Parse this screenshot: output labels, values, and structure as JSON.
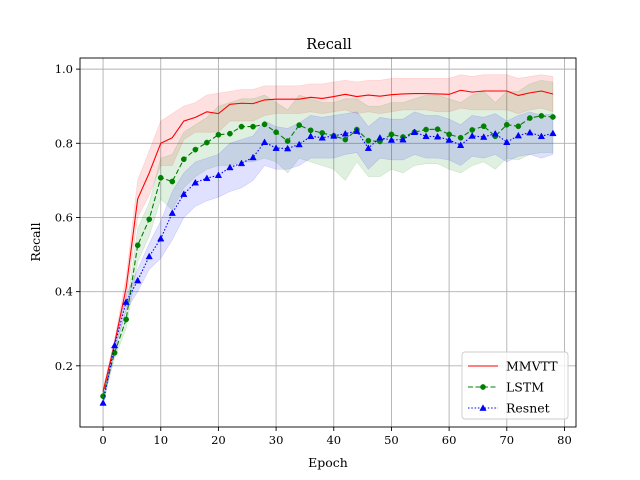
{
  "chart_data": {
    "type": "line",
    "title": "Recall",
    "xlabel": "Epoch",
    "ylabel": "Recall",
    "xlim": [
      -4,
      82
    ],
    "ylim": [
      0.035,
      1.03
    ],
    "xticks": [
      0,
      10,
      20,
      30,
      40,
      50,
      60,
      70,
      80
    ],
    "yticks": [
      0.2,
      0.4,
      0.6,
      0.8,
      1.0
    ],
    "xtick_labels": [
      "0",
      "10",
      "20",
      "30",
      "40",
      "50",
      "60",
      "70",
      "80"
    ],
    "ytick_labels": [
      "0.2",
      "0.4",
      "0.6",
      "0.8",
      "1.0"
    ],
    "grid": true,
    "legend_position": "lower-right",
    "x": [
      0,
      2,
      4,
      6,
      8,
      10,
      12,
      14,
      16,
      18,
      20,
      22,
      24,
      26,
      28,
      30,
      32,
      34,
      36,
      38,
      40,
      42,
      44,
      46,
      48,
      50,
      52,
      54,
      56,
      58,
      60,
      62,
      64,
      66,
      68,
      70,
      72,
      74,
      76,
      78
    ],
    "series": [
      {
        "name": "MMVTT",
        "color": "#ff0000",
        "line_style": "solid",
        "marker": "none",
        "values": [
          0.13,
          0.26,
          0.41,
          0.65,
          0.72,
          0.8,
          0.815,
          0.86,
          0.87,
          0.885,
          0.88,
          0.905,
          0.908,
          0.907,
          0.917,
          0.919,
          0.919,
          0.919,
          0.924,
          0.921,
          0.926,
          0.932,
          0.926,
          0.93,
          0.927,
          0.931,
          0.933,
          0.934,
          0.934,
          0.933,
          0.932,
          0.943,
          0.938,
          0.941,
          0.941,
          0.941,
          0.929,
          0.936,
          0.941,
          0.933
        ],
        "band_lower": [
          0.12,
          0.25,
          0.38,
          0.6,
          0.66,
          0.74,
          0.74,
          0.81,
          0.83,
          0.83,
          0.83,
          0.86,
          0.86,
          0.86,
          0.875,
          0.88,
          0.88,
          0.88,
          0.885,
          0.88,
          0.885,
          0.89,
          0.88,
          0.885,
          0.88,
          0.885,
          0.89,
          0.89,
          0.89,
          0.885,
          0.885,
          0.895,
          0.89,
          0.89,
          0.89,
          0.89,
          0.88,
          0.89,
          0.895,
          0.885
        ],
        "band_upper": [
          0.14,
          0.27,
          0.44,
          0.7,
          0.78,
          0.86,
          0.88,
          0.9,
          0.91,
          0.93,
          0.935,
          0.94,
          0.945,
          0.945,
          0.955,
          0.955,
          0.955,
          0.955,
          0.96,
          0.96,
          0.965,
          0.97,
          0.965,
          0.97,
          0.97,
          0.975,
          0.975,
          0.975,
          0.975,
          0.975,
          0.975,
          0.985,
          0.98,
          0.985,
          0.985,
          0.985,
          0.975,
          0.98,
          0.985,
          0.98
        ]
      },
      {
        "name": "LSTM",
        "color": "#008000",
        "line_style": "dashed",
        "marker": "circle",
        "values": [
          0.118,
          0.235,
          0.325,
          0.525,
          0.595,
          0.707,
          0.697,
          0.757,
          0.783,
          0.802,
          0.823,
          0.826,
          0.845,
          0.845,
          0.851,
          0.83,
          0.806,
          0.849,
          0.835,
          0.828,
          0.82,
          0.81,
          0.837,
          0.807,
          0.805,
          0.824,
          0.817,
          0.83,
          0.837,
          0.838,
          0.824,
          0.815,
          0.836,
          0.846,
          0.819,
          0.85,
          0.846,
          0.868,
          0.874,
          0.871
        ],
        "band_lower": [
          0.105,
          0.22,
          0.3,
          0.48,
          0.55,
          0.65,
          0.62,
          0.68,
          0.71,
          0.73,
          0.74,
          0.74,
          0.75,
          0.75,
          0.76,
          0.75,
          0.72,
          0.76,
          0.75,
          0.74,
          0.73,
          0.7,
          0.75,
          0.71,
          0.71,
          0.73,
          0.72,
          0.74,
          0.745,
          0.745,
          0.73,
          0.72,
          0.74,
          0.75,
          0.73,
          0.76,
          0.755,
          0.77,
          0.775,
          0.775
        ],
        "band_upper": [
          0.13,
          0.25,
          0.35,
          0.57,
          0.64,
          0.76,
          0.77,
          0.83,
          0.85,
          0.87,
          0.9,
          0.91,
          0.92,
          0.92,
          0.93,
          0.91,
          0.89,
          0.93,
          0.92,
          0.91,
          0.91,
          0.92,
          0.92,
          0.9,
          0.9,
          0.91,
          0.91,
          0.92,
          0.93,
          0.93,
          0.92,
          0.91,
          0.93,
          0.94,
          0.91,
          0.94,
          0.94,
          0.96,
          0.97,
          0.965
        ]
      },
      {
        "name": "Resnet",
        "color": "#0000ff",
        "line_style": "dotted",
        "marker": "triangle",
        "values": [
          0.1,
          0.255,
          0.372,
          0.43,
          0.495,
          0.543,
          0.612,
          0.663,
          0.694,
          0.706,
          0.714,
          0.735,
          0.746,
          0.762,
          0.803,
          0.787,
          0.786,
          0.797,
          0.819,
          0.815,
          0.82,
          0.826,
          0.833,
          0.787,
          0.815,
          0.809,
          0.81,
          0.83,
          0.819,
          0.818,
          0.809,
          0.795,
          0.82,
          0.817,
          0.826,
          0.803,
          0.821,
          0.829,
          0.819,
          0.827
        ],
        "band_lower": [
          0.09,
          0.24,
          0.35,
          0.4,
          0.46,
          0.49,
          0.54,
          0.6,
          0.63,
          0.645,
          0.655,
          0.67,
          0.68,
          0.7,
          0.74,
          0.73,
          0.73,
          0.74,
          0.76,
          0.76,
          0.76,
          0.77,
          0.775,
          0.73,
          0.76,
          0.755,
          0.755,
          0.77,
          0.76,
          0.76,
          0.755,
          0.74,
          0.765,
          0.76,
          0.77,
          0.75,
          0.765,
          0.77,
          0.76,
          0.77
        ],
        "band_upper": [
          0.11,
          0.27,
          0.39,
          0.46,
          0.53,
          0.59,
          0.67,
          0.72,
          0.75,
          0.76,
          0.77,
          0.8,
          0.81,
          0.82,
          0.86,
          0.845,
          0.84,
          0.855,
          0.875,
          0.87,
          0.875,
          0.88,
          0.885,
          0.845,
          0.87,
          0.865,
          0.865,
          0.885,
          0.875,
          0.875,
          0.865,
          0.85,
          0.875,
          0.87,
          0.88,
          0.86,
          0.875,
          0.885,
          0.875,
          0.88
        ]
      }
    ]
  }
}
